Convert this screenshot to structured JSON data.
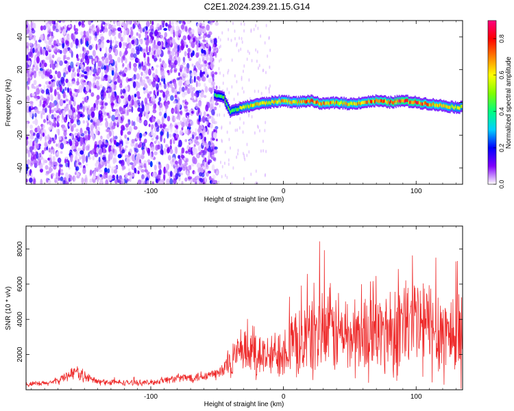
{
  "page": {
    "title": "C2E1.2024.239.21.15.G14"
  },
  "chart_data": [
    {
      "type": "heatmap",
      "title": "C2E1.2024.239.21.15.G14",
      "xlabel": "Height of straight line (km)",
      "ylabel": "Frequency (Hz)",
      "xlim": [
        -194,
        135
      ],
      "ylim": [
        -50,
        50
      ],
      "xticks": [
        -100,
        0,
        100
      ],
      "yticks": [
        -40,
        -20,
        0,
        20,
        40
      ],
      "colorbar": {
        "label": "Normalized spectral amplitude",
        "range": [
          0,
          0.9
        ],
        "ticks": [
          0.0,
          0.2,
          0.4,
          0.6,
          0.8
        ],
        "tick_labels": [
          "0.0",
          "0.2",
          "0.4",
          "0.6",
          "0.8"
        ],
        "colormap": [
          "#ffffff",
          "#8000ff",
          "#0000ff",
          "#00d0ff",
          "#00ff80",
          "#80ff00",
          "#ffff00",
          "#ff8000",
          "#ff0000",
          "#ff0080"
        ]
      },
      "noise_region": {
        "x_range": [
          -194,
          -50
        ],
        "amplitude": 0.08
      },
      "signal_ridge": {
        "x": [
          -52,
          -45,
          -40,
          -35,
          -30,
          -20,
          -10,
          0,
          10,
          20,
          30,
          40,
          50,
          60,
          70,
          80,
          90,
          100,
          110,
          120,
          130,
          135
        ],
        "frequency": [
          5,
          3,
          -6,
          -4,
          -3,
          -1,
          0,
          1,
          0,
          1,
          -1,
          0,
          -1,
          0,
          1,
          0,
          1,
          0,
          -1,
          -2,
          -3,
          -3
        ],
        "peak_amplitude": [
          0.4,
          0.45,
          0.5,
          0.5,
          0.6,
          0.65,
          0.6,
          0.7,
          0.65,
          0.75,
          0.7,
          0.7,
          0.65,
          0.7,
          0.75,
          0.8,
          0.85,
          0.8,
          0.7,
          0.65,
          0.6,
          0.6
        ]
      }
    },
    {
      "type": "line",
      "title": "",
      "xlabel": "Height of straight line (km)",
      "ylabel": "SNR (10 * v/v)",
      "xlim": [
        -194,
        135
      ],
      "ylim": [
        0,
        9300
      ],
      "xticks": [
        -100,
        0,
        100
      ],
      "yticks": [
        2000,
        4000,
        6000,
        8000
      ],
      "series": [
        {
          "name": "SNR",
          "color": "#ee2a2a",
          "x": [
            -194,
            -180,
            -170,
            -160,
            -155,
            -150,
            -140,
            -120,
            -100,
            -90,
            -80,
            -70,
            -60,
            -50,
            -45,
            -40,
            -35,
            -30,
            -25,
            -20,
            -15,
            -10,
            -5,
            0,
            5,
            10,
            15,
            20,
            25,
            30,
            40,
            50,
            60,
            70,
            80,
            90,
            100,
            110,
            120,
            130,
            135
          ],
          "mean": [
            300,
            350,
            500,
            950,
            1000,
            750,
            450,
            400,
            400,
            550,
            650,
            700,
            800,
            900,
            1100,
            1700,
            1900,
            2000,
            2100,
            2200,
            1900,
            1800,
            2100,
            2400,
            2500,
            2600,
            2800,
            3000,
            3400,
            3300,
            3300,
            3000,
            3100,
            3200,
            3400,
            3600,
            3700,
            3500,
            3300,
            3100,
            3100
          ],
          "spread": [
            200,
            200,
            250,
            450,
            500,
            400,
            250,
            200,
            200,
            250,
            300,
            350,
            400,
            450,
            700,
            1300,
            1400,
            1500,
            1800,
            2300,
            1500,
            1400,
            1800,
            2000,
            2200,
            2400,
            2600,
            2900,
            3500,
            3100,
            3000,
            2800,
            2900,
            3000,
            3300,
            3500,
            4000,
            3600,
            3400,
            3300,
            3300
          ]
        }
      ]
    }
  ]
}
